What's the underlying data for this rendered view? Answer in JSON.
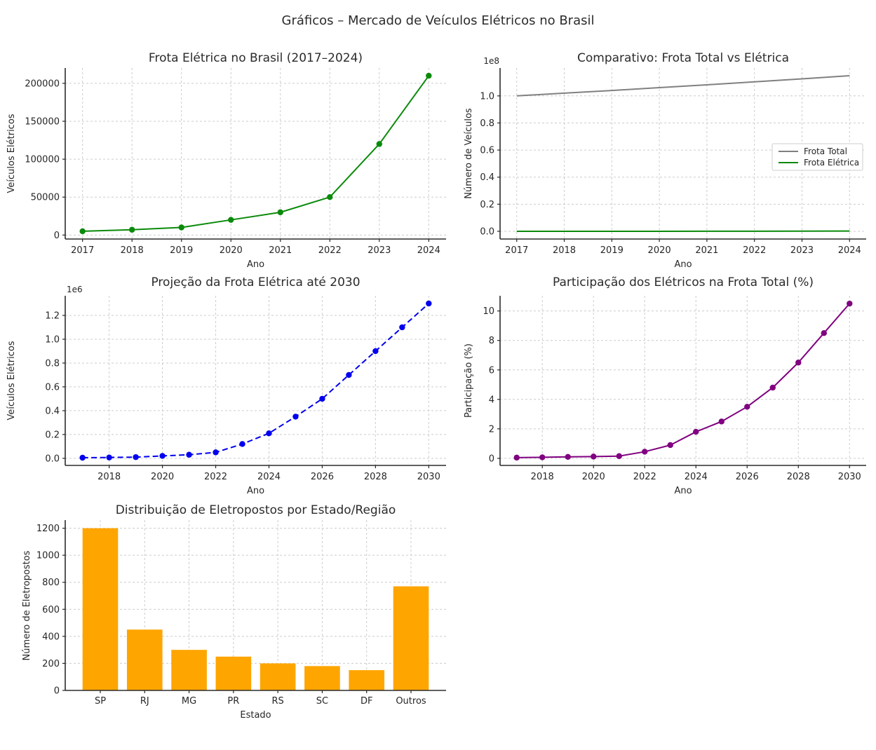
{
  "page": {
    "suptitle": "Gráficos – Mercado de Veículos Elétricos no Brasil",
    "background": "#ffffff"
  },
  "chart_data": [
    {
      "id": "frota-eletrica-brasil",
      "type": "line",
      "title": "Frota Elétrica no Brasil (2017–2024)",
      "xlabel": "Ano",
      "ylabel": "Veículos Elétricos",
      "grid": true,
      "x": [
        2017,
        2018,
        2019,
        2020,
        2021,
        2022,
        2023,
        2024
      ],
      "series": [
        {
          "id": "frota-eletrica",
          "name": "Frota Elétrica",
          "color": "#0a8a0a",
          "dashed": false,
          "marker": true,
          "values": [
            5000,
            7000,
            10000,
            20000,
            30000,
            50000,
            120000,
            210000
          ]
        }
      ],
      "xlim": [
        2016.65,
        2024.35
      ],
      "ylim": [
        -5250,
        220250
      ],
      "xticks": [
        2017,
        2018,
        2019,
        2020,
        2021,
        2022,
        2023,
        2024
      ],
      "xtick_labels": [
        "2017",
        "2018",
        "2019",
        "2020",
        "2021",
        "2022",
        "2023",
        "2024"
      ],
      "yticks": [
        0,
        50000,
        100000,
        150000,
        200000
      ],
      "ytick_labels": [
        "0",
        "50000",
        "100000",
        "150000",
        "200000"
      ],
      "offset_label": null,
      "legend": null
    },
    {
      "id": "comparativo-frota-total-vs-eletrica",
      "type": "line",
      "title": "Comparativo: Frota Total vs Elétrica",
      "xlabel": "Ano",
      "ylabel": "Número de Veículos",
      "grid": true,
      "x": [
        2017,
        2018,
        2019,
        2020,
        2021,
        2022,
        2023,
        2024
      ],
      "series": [
        {
          "id": "frota-total",
          "name": "Frota Total",
          "color": "#808080",
          "dashed": false,
          "marker": false,
          "values": [
            100000000,
            102000000,
            104000000,
            106100000,
            108200000,
            110400000,
            112600000,
            114900000
          ]
        },
        {
          "id": "frota-eletrica",
          "name": "Frota Elétrica",
          "color": "#0a8a0a",
          "dashed": false,
          "marker": false,
          "values": [
            5000,
            7000,
            10000,
            20000,
            30000,
            50000,
            120000,
            210000
          ]
        }
      ],
      "xlim": [
        2016.65,
        2024.35
      ],
      "ylim": [
        -5700000,
        120600000
      ],
      "xticks": [
        2017,
        2018,
        2019,
        2020,
        2021,
        2022,
        2023,
        2024
      ],
      "xtick_labels": [
        "2017",
        "2018",
        "2019",
        "2020",
        "2021",
        "2022",
        "2023",
        "2024"
      ],
      "yticks": [
        0,
        20000000,
        40000000,
        60000000,
        80000000,
        100000000
      ],
      "ytick_labels": [
        "0.0",
        "0.2",
        "0.4",
        "0.6",
        "0.8",
        "1.0"
      ],
      "offset_label": "1e8",
      "legend": {
        "position": "center right",
        "entries": [
          "Frota Total",
          "Frota Elétrica"
        ]
      }
    },
    {
      "id": "projecao-frota-eletrica-2030",
      "type": "line",
      "title": "Projeção da Frota Elétrica até 2030",
      "xlabel": "Ano",
      "ylabel": "Veículos Elétricos",
      "grid": true,
      "x": [
        2017,
        2018,
        2019,
        2020,
        2021,
        2022,
        2023,
        2024,
        2025,
        2026,
        2027,
        2028,
        2029,
        2030
      ],
      "series": [
        {
          "id": "projecao",
          "name": "Projeção",
          "color": "#0000ee",
          "dashed": true,
          "marker": true,
          "values": [
            5000,
            7000,
            10000,
            20000,
            30000,
            50000,
            120000,
            210000,
            350000,
            500000,
            700000,
            900000,
            1100000,
            1300000
          ]
        }
      ],
      "xlim": [
        2016.35,
        2030.65
      ],
      "ylim": [
        -59750,
        1364750
      ],
      "xticks": [
        2018,
        2020,
        2022,
        2024,
        2026,
        2028,
        2030
      ],
      "xtick_labels": [
        "2018",
        "2020",
        "2022",
        "2024",
        "2026",
        "2028",
        "2030"
      ],
      "yticks": [
        0,
        200000,
        400000,
        600000,
        800000,
        1000000,
        1200000
      ],
      "ytick_labels": [
        "0.0",
        "0.2",
        "0.4",
        "0.6",
        "0.8",
        "1.0",
        "1.2"
      ],
      "offset_label": "1e6",
      "legend": null
    },
    {
      "id": "participacao-eletricos-frota-total",
      "type": "line",
      "title": "Participação dos Elétricos na Frota Total (%)",
      "xlabel": "Ano",
      "ylabel": "Participação (%)",
      "grid": true,
      "x": [
        2017,
        2018,
        2019,
        2020,
        2021,
        2022,
        2023,
        2024,
        2025,
        2026,
        2027,
        2028,
        2029,
        2030
      ],
      "series": [
        {
          "id": "participacao",
          "name": "Participação",
          "color": "#800080",
          "dashed": false,
          "marker": true,
          "values": [
            0.05,
            0.07,
            0.1,
            0.12,
            0.15,
            0.45,
            0.9,
            1.8,
            2.5,
            3.5,
            4.8,
            6.5,
            8.5,
            10.5
          ]
        }
      ],
      "xlim": [
        2016.35,
        2030.65
      ],
      "ylim": [
        -0.48,
        11.03
      ],
      "xticks": [
        2018,
        2020,
        2022,
        2024,
        2026,
        2028,
        2030
      ],
      "xtick_labels": [
        "2018",
        "2020",
        "2022",
        "2024",
        "2026",
        "2028",
        "2030"
      ],
      "yticks": [
        0,
        2,
        4,
        6,
        8,
        10
      ],
      "ytick_labels": [
        "0",
        "2",
        "4",
        "6",
        "8",
        "10"
      ],
      "offset_label": null,
      "legend": null
    },
    {
      "id": "eletropostos-por-estado",
      "type": "bar",
      "title": "Distribuição de Eletropostos por Estado/Região",
      "xlabel": "Estado",
      "ylabel": "Número de Eletropostos",
      "grid": true,
      "categories": [
        "SP",
        "RJ",
        "MG",
        "PR",
        "RS",
        "SC",
        "DF",
        "Outros"
      ],
      "values": [
        1200,
        450,
        300,
        250,
        200,
        180,
        150,
        770
      ],
      "color": "#ffa500",
      "bar_width": 0.8,
      "xlim": [
        -0.79,
        7.79
      ],
      "ylim": [
        0,
        1260
      ],
      "xticks": [
        0,
        1,
        2,
        3,
        4,
        5,
        6,
        7
      ],
      "xtick_labels": [
        "SP",
        "RJ",
        "MG",
        "PR",
        "RS",
        "SC",
        "DF",
        "Outros"
      ],
      "yticks": [
        0,
        200,
        400,
        600,
        800,
        1000,
        1200
      ],
      "ytick_labels": [
        "0",
        "200",
        "400",
        "600",
        "800",
        "1000",
        "1200"
      ],
      "offset_label": null,
      "legend": null
    }
  ]
}
